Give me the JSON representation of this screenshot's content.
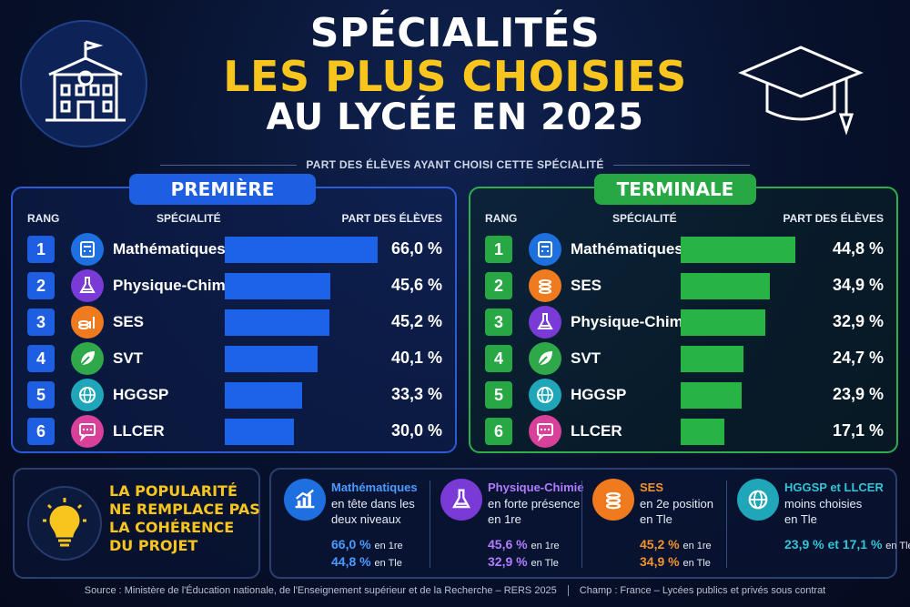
{
  "title": {
    "line1": "SPÉCIALITÉS",
    "line2": "LES PLUS CHOISIES",
    "line3": "AU LYCÉE EN 2025"
  },
  "subtitle": "PART DES ÉLÈVES AYANT CHOISI CETTE SPÉCIALITÉ",
  "colors": {
    "premiere": "#1d63ea",
    "terminale": "#27b444",
    "accent": "#f7c51e"
  },
  "chart_data": [
    {
      "type": "bar",
      "title": "PREMIÈRE",
      "columns": [
        "RANG",
        "SPÉCIALITÉ",
        "PART DES ÉLÈVES"
      ],
      "categories": [
        "Mathématiques",
        "Physique-Chimie",
        "SES",
        "SVT",
        "HGGSP",
        "LLCER"
      ],
      "ranks": [
        "1",
        "2",
        "3",
        "4",
        "5",
        "6"
      ],
      "values": [
        66.0,
        45.6,
        45.2,
        40.1,
        33.3,
        30.0
      ],
      "labels": [
        "66,0 %",
        "45,6 %",
        "45,2 %",
        "40,1 %",
        "33,3 %",
        "30,0 %"
      ],
      "icons": [
        "calculator-icon",
        "flask-icon",
        "coins-chart-icon",
        "leaf-icon",
        "globe-icon",
        "speech-bubble-icon"
      ],
      "icon_colors": [
        "#1e6fe0",
        "#7a3ad6",
        "#f07a1e",
        "#2fa84a",
        "#1fa6b8",
        "#d9409a"
      ],
      "orientation": "horizontal",
      "xlim": [
        0,
        66
      ]
    },
    {
      "type": "bar",
      "title": "TERMINALE",
      "columns": [
        "RANG",
        "SPÉCIALITÉ",
        "PART DES ÉLÈVES"
      ],
      "categories": [
        "Mathématiques",
        "SES",
        "Physique-Chimie",
        "SVT",
        "HGGSP",
        "LLCER"
      ],
      "ranks": [
        "1",
        "2",
        "3",
        "4",
        "5",
        "6"
      ],
      "values": [
        44.8,
        34.9,
        32.9,
        24.7,
        23.9,
        17.1
      ],
      "labels": [
        "44,8 %",
        "34,9 %",
        "32,9 %",
        "24,7 %",
        "23,9 %",
        "17,1 %"
      ],
      "icons": [
        "calculator-icon",
        "coins-icon",
        "flask-icon",
        "leaf-icon",
        "globe-icon",
        "speech-bubble-icon"
      ],
      "icon_colors": [
        "#1e6fe0",
        "#f07a1e",
        "#7a3ad6",
        "#2fa84a",
        "#1fa6b8",
        "#d9409a"
      ],
      "orientation": "horizontal",
      "xlim": [
        0,
        44.8
      ]
    }
  ],
  "warning": [
    "LA POPULARITÉ",
    "NE REMPLACE PAS",
    "LA COHÉRENCE",
    "DU PROJET"
  ],
  "cards": [
    {
      "title": "Mathématiques",
      "title_color": "#4a9bff",
      "icon": "chart-up-icon",
      "icon_color": "#1e6fe0",
      "desc": [
        "en tête dans les",
        "deux niveaux"
      ],
      "stats": [
        {
          "value": "66,0 %",
          "suffix": "en 1re",
          "color": "#4a9bff"
        },
        {
          "value": "44,8 %",
          "suffix": "en Tle",
          "color": "#4a9bff"
        }
      ]
    },
    {
      "title": "Physique-Chimie",
      "title_color": "#b27cff",
      "icon": "flask-icon",
      "icon_color": "#7a3ad6",
      "desc": [
        "en forte présence",
        "en 1re"
      ],
      "stats": [
        {
          "value": "45,6 %",
          "suffix": "en 1re",
          "color": "#b27cff"
        },
        {
          "value": "32,9 %",
          "suffix": "en Tle",
          "color": "#b27cff"
        }
      ]
    },
    {
      "title": "SES",
      "title_color": "#f2932e",
      "icon": "coins-icon",
      "icon_color": "#f07a1e",
      "desc": [
        "en 2e position",
        "en Tle"
      ],
      "stats": [
        {
          "value": "45,2 %",
          "suffix": "en 1re",
          "color": "#f2932e"
        },
        {
          "value": "34,9 %",
          "suffix": "en Tle",
          "color": "#f2932e"
        }
      ]
    },
    {
      "title": "HGGSP et LLCER",
      "title_color": "#33c4d6",
      "icon": "globe-icon",
      "icon_color": "#1fa6b8",
      "desc": [
        "moins choisies",
        "en Tle"
      ],
      "stats": [
        {
          "value": "23,9 % et 17,1 %",
          "suffix": "en Tle",
          "color": "#33c4d6"
        }
      ]
    }
  ],
  "footer": {
    "source": "Source : Ministère de l'Éducation nationale, de l'Enseignement supérieur et de la Recherche – RERS 2025",
    "scope": "Champ : France – Lycées publics et privés sous contrat"
  }
}
